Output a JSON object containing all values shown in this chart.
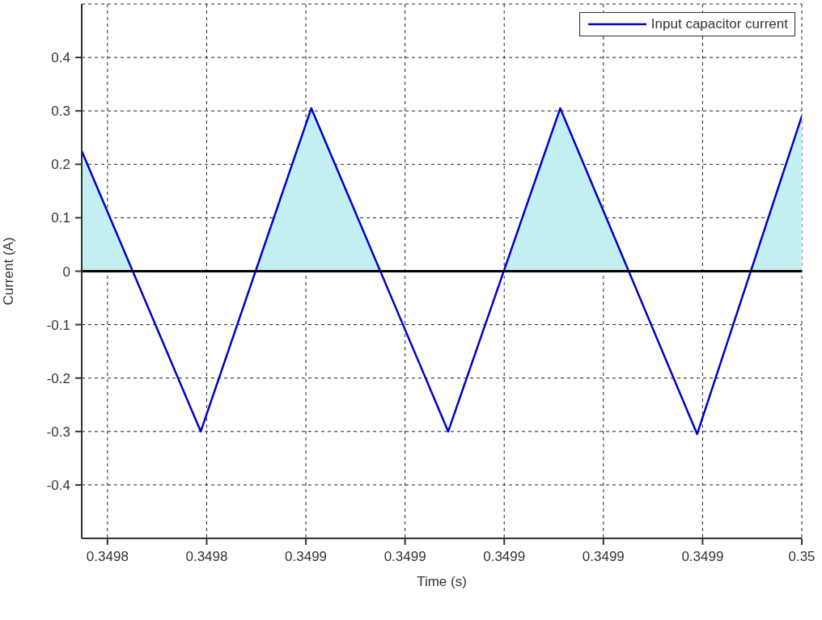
{
  "chart_data": {
    "type": "area",
    "xlabel": "Time (s)",
    "ylabel": "Current (A)",
    "x": [
      0.3498148,
      0.3498388,
      0.3498611,
      0.3498887,
      0.3499113,
      0.3499389,
      0.34996
    ],
    "series": [
      {
        "name": "Input capacitor current",
        "color": "#0000cc",
        "values": [
          0.225,
          -0.3,
          0.305,
          -0.3,
          0.305,
          -0.305,
          0.29
        ]
      }
    ],
    "xlim": [
      0.3498148,
      0.34996
    ],
    "xticks": [
      {
        "value": 0.34982,
        "label": "0.3498"
      },
      {
        "value": 0.34984,
        "label": "0.3498"
      },
      {
        "value": 0.34986,
        "label": "0.3499"
      },
      {
        "value": 0.34988,
        "label": "0.3499"
      },
      {
        "value": 0.3499,
        "label": "0.3499"
      },
      {
        "value": 0.34992,
        "label": "0.3499"
      },
      {
        "value": 0.34994,
        "label": "0.3499"
      },
      {
        "value": 0.34996,
        "label": "0.35"
      }
    ],
    "ylim": [
      -0.5,
      0.5
    ],
    "yticks": [
      -0.4,
      -0.3,
      -0.2,
      -0.1,
      0,
      0.1,
      0.2,
      0.3,
      0.4
    ],
    "ref_lines": [
      {
        "axis": "y",
        "value": 0,
        "color": "#000000"
      }
    ],
    "grid": true,
    "legend": "top right",
    "line_style": "solid",
    "marker": "none"
  }
}
